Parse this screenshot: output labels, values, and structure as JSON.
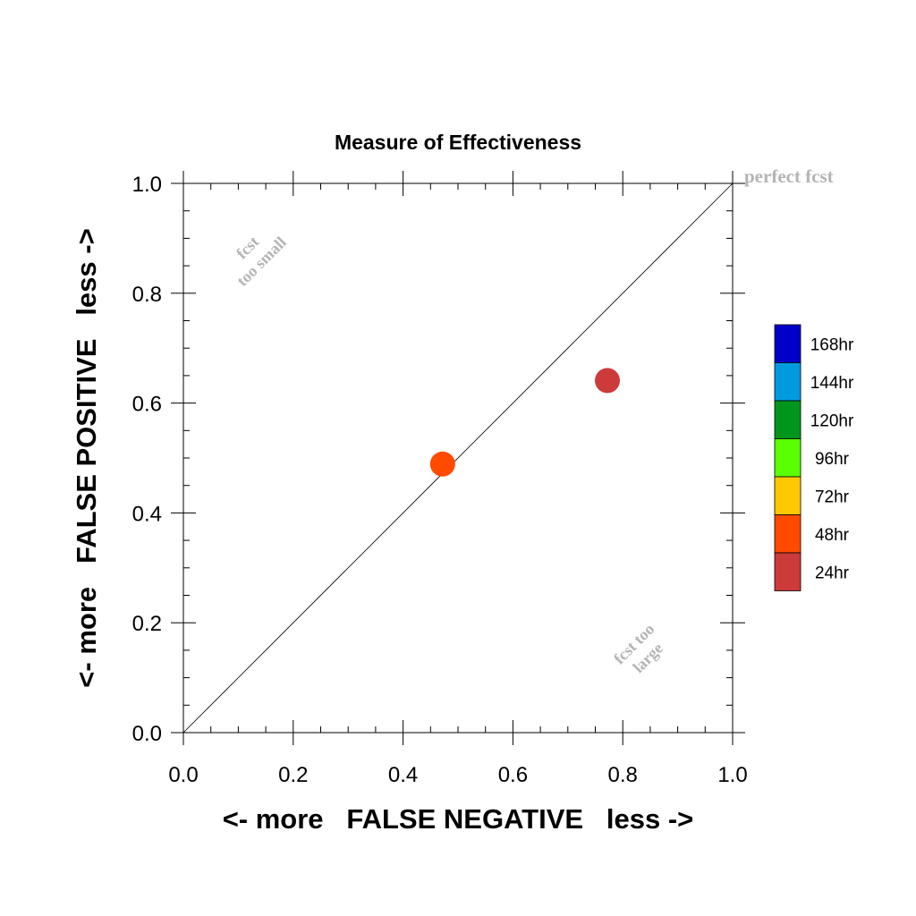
{
  "chart_data": {
    "type": "scatter",
    "title": "Measure of Effectiveness",
    "xlabel": "<- more   FALSE NEGATIVE   less ->",
    "ylabel": "<- more   FALSE POSITIVE   less ->",
    "xlim": [
      0.0,
      1.0
    ],
    "ylim": [
      0.0,
      1.0
    ],
    "x_ticks": [
      0.0,
      0.2,
      0.4,
      0.6,
      0.8,
      1.0
    ],
    "y_ticks": [
      0.0,
      0.2,
      0.4,
      0.6,
      0.8,
      1.0
    ],
    "x_tick_labels": [
      "0.0",
      "0.2",
      "0.4",
      "0.6",
      "0.8",
      "1.0"
    ],
    "y_tick_labels": [
      "0.0",
      "0.2",
      "0.4",
      "0.6",
      "0.8",
      "1.0"
    ],
    "grid": false,
    "diagonal_line": true,
    "annotations": {
      "perfect": "perfect fcst",
      "small_line1": "fcst",
      "small_line2": "too small",
      "large_line1": "fcst too",
      "large_line2": "large"
    },
    "annotation_color": "#b4b4b4",
    "points": [
      {
        "lead": "24hr",
        "x": 0.772,
        "y": 0.641,
        "color": "#cc3a3a"
      },
      {
        "lead": "48hr",
        "x": 0.472,
        "y": 0.489,
        "color": "#ff4a00"
      }
    ],
    "legend": {
      "placement": "right",
      "entries": [
        {
          "label": "168hr",
          "color": "#0000c8"
        },
        {
          "label": "144hr",
          "color": "#009ade"
        },
        {
          "label": "120hr",
          "color": "#00961e"
        },
        {
          "label": "96hr",
          "color": "#5aff00"
        },
        {
          "label": "72hr",
          "color": "#ffc800"
        },
        {
          "label": "48hr",
          "color": "#ff4a00"
        },
        {
          "label": "24hr",
          "color": "#cc3a3a"
        }
      ]
    }
  }
}
